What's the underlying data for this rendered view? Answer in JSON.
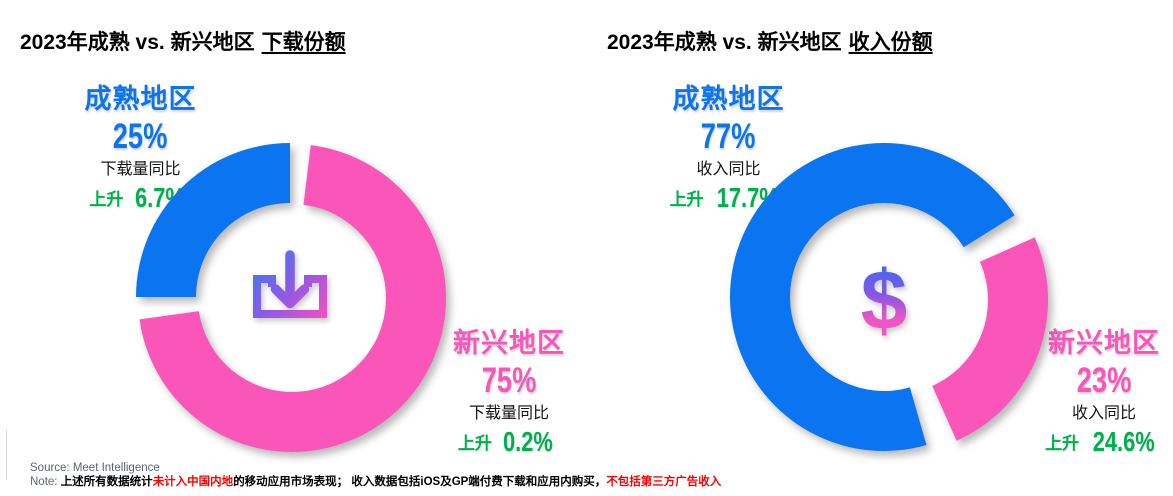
{
  "charts": [
    {
      "id": "downloads",
      "title_prefix": "2023年成熟 vs. 新兴地区",
      "title_suffix": "下载份额",
      "center_icon": "download-icon",
      "mature": {
        "name": "成熟地区",
        "share": "25%",
        "metric": "下载量同比",
        "direction": "上升",
        "change": "6.7%"
      },
      "emerging": {
        "name": "新兴地区",
        "share": "75%",
        "metric": "下载量同比",
        "direction": "上升",
        "change": "0.2%"
      }
    },
    {
      "id": "revenue",
      "title_prefix": "2023年成熟 vs. 新兴地区",
      "title_suffix": "收入份额",
      "center_icon": "dollar-icon",
      "mature": {
        "name": "成熟地区",
        "share": "77%",
        "metric": "收入同比",
        "direction": "上升",
        "change": "17.7%"
      },
      "emerging": {
        "name": "新兴地区",
        "share": "23%",
        "metric": "收入同比",
        "direction": "上升",
        "change": "24.6%"
      }
    }
  ],
  "footer": {
    "source": "Source: Meet Intelligence",
    "note_parts": [
      {
        "text": "Note: ",
        "style": "label"
      },
      {
        "text": "上述所有数据统计",
        "style": "normal"
      },
      {
        "text": "未计入中国内地",
        "style": "red"
      },
      {
        "text": "的移动应用市场表现； 收入数据包括iOS及GP端付费下载和应用内购买，",
        "style": "normal"
      },
      {
        "text": "不包括第三方广告收入",
        "style": "red"
      }
    ]
  },
  "colors": {
    "mature_blue": "#0b74f0",
    "emerging_pink": "#fa55b9",
    "change_green": "#00b050",
    "note_red": "#ff0000",
    "source_gray": "#5a6470"
  },
  "chart_data": [
    {
      "type": "pie",
      "subtype": "donut",
      "title": "2023年成熟 vs. 新兴地区 下载份额",
      "categories": [
        "成熟地区",
        "新兴地区"
      ],
      "values": [
        25,
        75
      ],
      "unit": "%",
      "colors": [
        "#0b74f0",
        "#fa55b9"
      ],
      "annotations": [
        "成熟地区 下载量同比 上升 6.7%",
        "新兴地区 下载量同比 上升 0.2%"
      ],
      "legend_position": "none",
      "center_symbol": "download",
      "segment_layout": [
        {
          "start": 270,
          "end": 360,
          "offset": [
            0,
            0
          ]
        },
        {
          "start": 7,
          "end": 262,
          "offset": [
            2,
            1
          ]
        }
      ]
    },
    {
      "type": "pie",
      "subtype": "donut",
      "title": "2023年成熟 vs. 新兴地区 收入份额",
      "categories": [
        "成熟地区",
        "新兴地区"
      ],
      "values": [
        77,
        23
      ],
      "unit": "%",
      "colors": [
        "#0b74f0",
        "#fa55b9"
      ],
      "annotations": [
        "成熟地区 收入同比 上升 17.7%",
        "新兴地区 收入同比 上升 24.6%"
      ],
      "legend_position": "none",
      "center_symbol": "dollar",
      "segment_layout": [
        {
          "start": 164,
          "end": 418,
          "offset": [
            0,
            0
          ]
        },
        {
          "start": 66,
          "end": 156,
          "offset": [
            10,
            3
          ]
        }
      ]
    }
  ]
}
